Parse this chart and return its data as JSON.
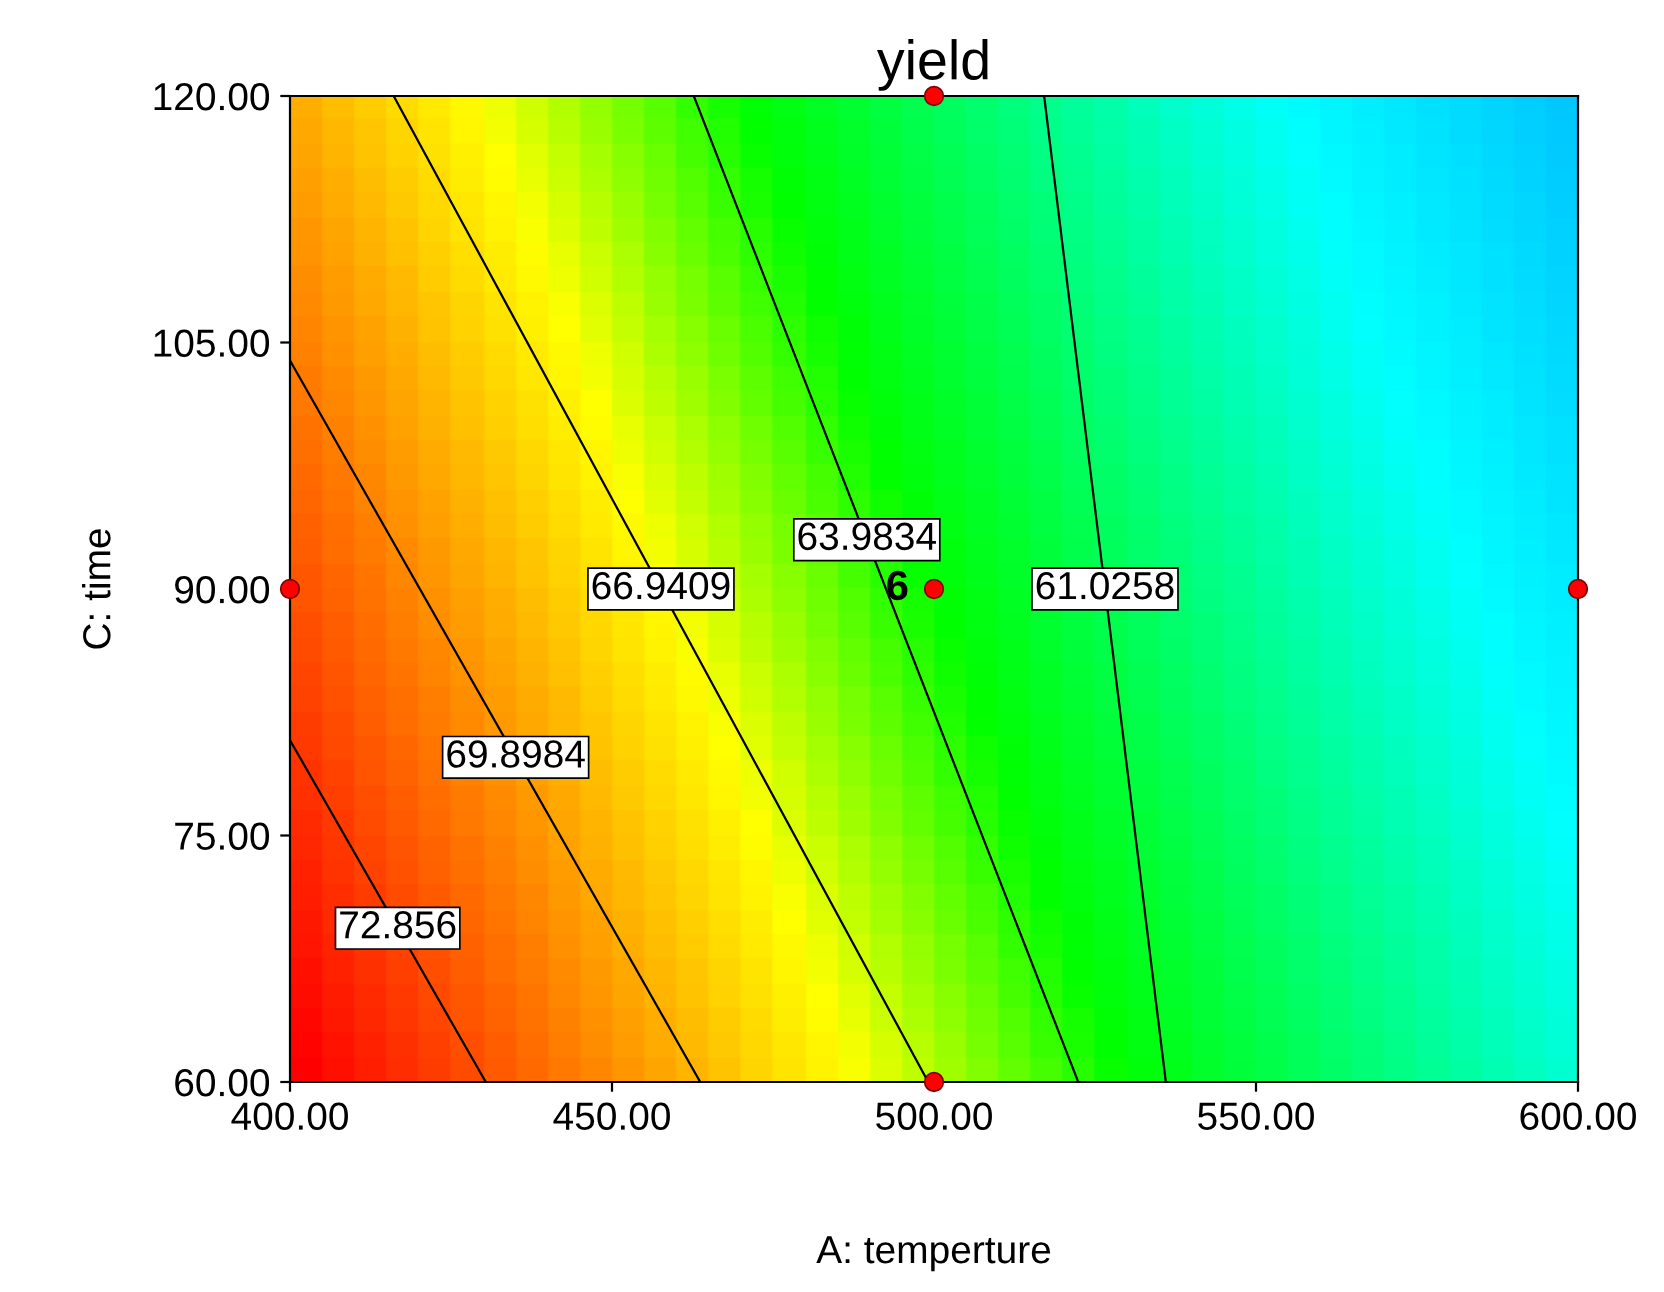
{
  "chart_data": {
    "type": "line",
    "title": "yield",
    "xlabel": "A: temperture",
    "ylabel": "C: time",
    "xlim": [
      400,
      600
    ],
    "xticks": [
      {
        "value": 400,
        "label": "400.00"
      },
      {
        "value": 450,
        "label": "450.00"
      },
      {
        "value": 500,
        "label": "500.00"
      },
      {
        "value": 550,
        "label": "550.00"
      },
      {
        "value": 600,
        "label": "600.00"
      }
    ],
    "ylim": [
      60,
      120
    ],
    "yticks": [
      {
        "value": 60,
        "label": "60.00"
      },
      {
        "value": 75,
        "label": "75.00"
      },
      {
        "value": 90,
        "label": "90.00"
      },
      {
        "value": 105,
        "label": "105.00"
      },
      {
        "value": 120,
        "label": "120.00"
      }
    ],
    "grid": false,
    "legend": false,
    "series": [
      {
        "name": "72.856",
        "color": "#000000",
        "x": [
          400,
          430.4
        ],
        "values": [
          80.8,
          60
        ]
      },
      {
        "name": "69.8984",
        "color": "#000000",
        "x": [
          400,
          463.7
        ],
        "values": [
          103.9,
          60
        ]
      },
      {
        "name": "66.9409",
        "color": "#000000",
        "x": [
          416.1,
          499.1
        ],
        "values": [
          120,
          60
        ]
      },
      {
        "name": "63.9834",
        "color": "#000000",
        "x": [
          462.7,
          522.4
        ],
        "values": [
          120,
          60
        ]
      },
      {
        "name": "61.0258",
        "color": "#000000",
        "x": [
          517.1,
          536
        ],
        "values": [
          120,
          60
        ]
      },
      {
        "type": "scatter",
        "color": "#ff0000",
        "x": [
          400,
          500,
          500,
          500,
          600
        ],
        "values": [
          90,
          120,
          90,
          60,
          90
        ]
      }
    ],
    "annotations": [
      {
        "text": "6",
        "x": 500,
        "y": 90
      }
    ]
  }
}
